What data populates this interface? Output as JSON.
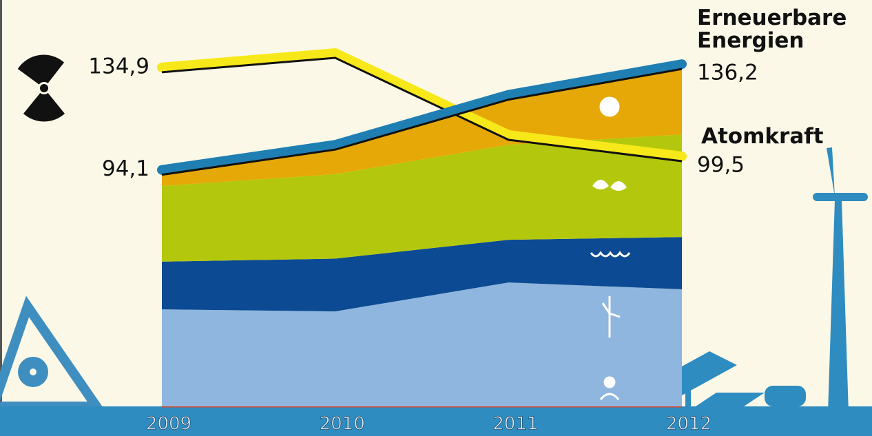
{
  "chart_data": {
    "type": "area",
    "categories": [
      "2009",
      "2010",
      "2011",
      "2012"
    ],
    "ylim": [
      0,
      145
    ],
    "series": [
      {
        "color": "#8fb6de",
        "values": [
          38.6,
          37.8,
          49.3,
          46.6
        ]
      },
      {
        "color": "#0c4b93",
        "values": [
          19.0,
          21.0,
          17.0,
          20.8
        ]
      },
      {
        "color": "#b3c80c",
        "values": [
          30.1,
          33.6,
          37.8,
          40.8
        ]
      },
      {
        "color": "#e6a806",
        "values": [
          6.4,
          11.7,
          19.9,
          28.0
        ]
      }
    ],
    "lines": [
      {
        "name": "Atomkraft",
        "color": "#f7e81a",
        "values": [
          134.9,
          140.6,
          108.0,
          99.5
        ],
        "value_labels": [
          "134,9",
          null,
          null,
          "99,5"
        ]
      },
      {
        "name": "Erneuerbare Energien",
        "color": "#1f7fb3",
        "values": [
          94.1,
          104.1,
          124.0,
          136.2
        ],
        "value_labels": [
          "94,1",
          null,
          null,
          "136,2"
        ]
      }
    ]
  }
}
